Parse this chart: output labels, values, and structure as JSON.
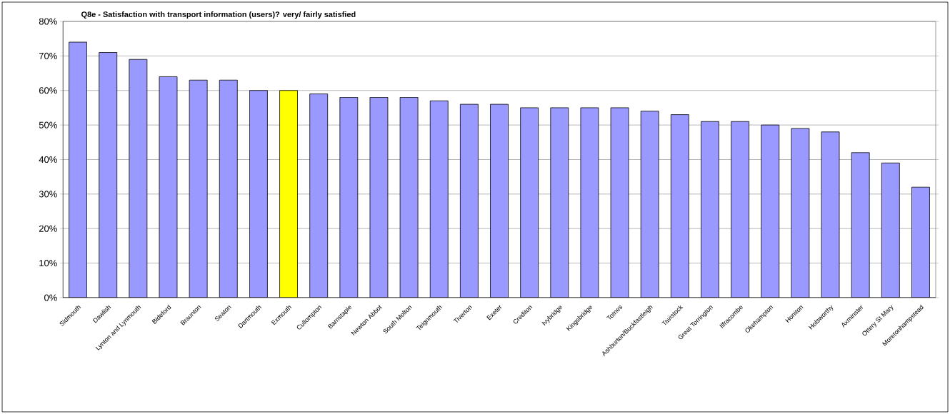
{
  "chart_data": {
    "type": "bar",
    "title": "Q8e - Satisfaction with transport information (users)? very/ fairly satisfied",
    "categories": [
      "Sidmouth",
      "Dawlish",
      "Lynton and Lynmouth",
      "Bideford",
      "Braunton",
      "Seaton",
      "Dartmouth",
      "Exmouth",
      "Cullompton",
      "Barnstaple",
      "Newton Abbot",
      "South Molton",
      "Teignmouth",
      "Tiverton",
      "Exeter",
      "Crediton",
      "Ivybridge",
      "Kingsbridge",
      "Totnes",
      "Ashburton/Buckfastleigh",
      "Tavistock",
      "Great Torrington",
      "Ilfracombe",
      "Okehampton",
      "Honiton",
      "Holsworthy",
      "Axminster",
      "Ottery St Mary",
      "Moretonhampstead"
    ],
    "values": [
      74,
      71,
      69,
      64,
      63,
      63,
      60,
      60,
      59,
      58,
      58,
      58,
      57,
      56,
      56,
      55,
      55,
      55,
      55,
      54,
      53,
      51,
      51,
      50,
      49,
      48,
      42,
      39,
      32
    ],
    "colors": [
      "#9999ff",
      "#9999ff",
      "#9999ff",
      "#9999ff",
      "#9999ff",
      "#9999ff",
      "#9999ff",
      "#ffff00",
      "#9999ff",
      "#9999ff",
      "#9999ff",
      "#9999ff",
      "#9999ff",
      "#9999ff",
      "#9999ff",
      "#9999ff",
      "#9999ff",
      "#9999ff",
      "#9999ff",
      "#9999ff",
      "#9999ff",
      "#9999ff",
      "#9999ff",
      "#9999ff",
      "#9999ff",
      "#9999ff",
      "#9999ff",
      "#9999ff",
      "#9999ff"
    ],
    "ylim": [
      0,
      80
    ],
    "yticks": [
      {
        "value": 0,
        "label": "0%"
      },
      {
        "value": 10,
        "label": "10%"
      },
      {
        "value": 20,
        "label": "20%"
      },
      {
        "value": 30,
        "label": "30%"
      },
      {
        "value": 40,
        "label": "40%"
      },
      {
        "value": 50,
        "label": "50%"
      },
      {
        "value": 60,
        "label": "60%"
      },
      {
        "value": 70,
        "label": "70%"
      },
      {
        "value": 80,
        "label": "80%"
      }
    ],
    "grid": "y"
  }
}
